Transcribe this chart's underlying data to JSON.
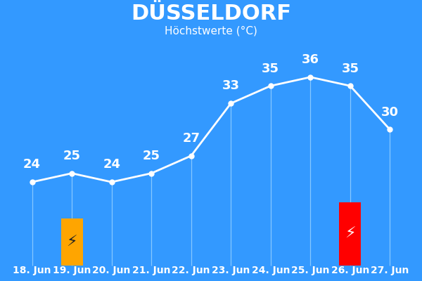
{
  "title": "DÜSSELDORF",
  "subtitle": "Höchstwerte (°C)",
  "background_color": "#3399FF",
  "dates": [
    "18. Jun",
    "19. Jun",
    "20. Jun",
    "21. Jun",
    "22. Jun",
    "23. Jun",
    "24. Jun",
    "25. Jun",
    "26. Jun",
    "27. Jun"
  ],
  "values": [
    24,
    25,
    24,
    25,
    27,
    33,
    35,
    36,
    35,
    30
  ],
  "line_color": "white",
  "label_color": "white",
  "title_fontsize": 22,
  "subtitle_fontsize": 11,
  "value_fontsize": 13,
  "xlabel_fontsize": 10,
  "bar_indices": [
    1,
    8
  ],
  "bar_colors": [
    "#FFA500",
    "#FF0000"
  ],
  "bar_width": 0.55,
  "lightning_colors": [
    "#222222",
    "#ffffff"
  ],
  "dot_color": "white",
  "dot_size": 5,
  "vline_color": "#aaddff",
  "vline_alpha": 0.7,
  "vline_lw": 0.9
}
